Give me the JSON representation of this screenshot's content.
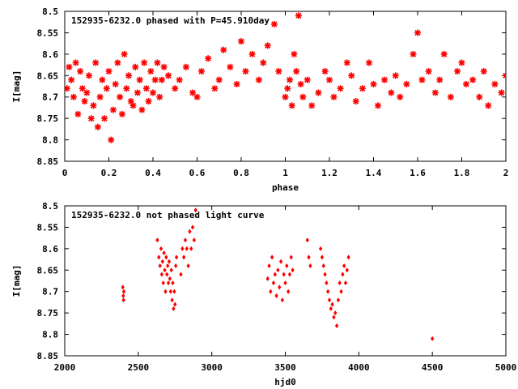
{
  "chart_data": [
    {
      "type": "scatter",
      "title": "152935-6232.0 phased with P=45.910day",
      "xlabel": "phase",
      "ylabel": "I[mag]",
      "xlim": [
        0,
        2
      ],
      "ylim": [
        8.85,
        8.5
      ],
      "y_inverted": true,
      "xticks": [
        "0",
        "0.2",
        "0.4",
        "0.6",
        "0.8",
        "1",
        "1.2",
        "1.4",
        "1.6",
        "1.8",
        "2"
      ],
      "yticks": [
        "8.5",
        "8.55",
        "8.6",
        "8.65",
        "8.7",
        "8.75",
        "8.8",
        "8.85"
      ],
      "grid": false,
      "marker": "star",
      "color": "#ff0000",
      "series": [
        {
          "x": [
            0.01,
            0.02,
            0.03,
            0.04,
            0.05,
            0.06,
            0.07,
            0.08,
            0.09,
            0.1,
            0.11,
            0.12,
            0.13,
            0.14,
            0.15,
            0.16,
            0.17,
            0.18,
            0.19,
            0.2,
            0.21,
            0.22,
            0.23,
            0.24,
            0.25,
            0.26,
            0.27,
            0.28,
            0.29,
            0.3,
            0.31,
            0.32,
            0.33,
            0.34,
            0.35,
            0.36,
            0.37,
            0.38,
            0.39,
            0.4,
            0.41,
            0.42,
            0.43,
            0.44,
            0.45,
            0.47,
            0.5,
            0.52,
            0.55,
            0.58,
            0.6,
            0.62,
            0.65,
            0.68,
            0.7,
            0.72,
            0.75,
            0.78,
            0.8,
            0.82,
            0.85,
            0.88,
            0.9,
            0.92,
            0.95,
            0.97,
            1.0,
            1.01,
            1.02,
            1.03,
            1.04,
            1.05,
            1.06,
            1.07,
            1.08,
            1.1,
            1.12,
            1.15,
            1.18,
            1.2,
            1.22,
            1.25,
            1.28,
            1.3,
            1.32,
            1.35,
            1.38,
            1.4,
            1.42,
            1.45,
            1.48,
            1.5,
            1.52,
            1.55,
            1.58,
            1.6,
            1.62,
            1.65,
            1.68,
            1.7,
            1.72,
            1.75,
            1.78,
            1.8,
            1.82,
            1.85,
            1.88,
            1.9,
            1.92,
            1.95,
            1.98,
            2.0
          ],
          "y": [
            8.68,
            8.63,
            8.66,
            8.7,
            8.62,
            8.74,
            8.64,
            8.68,
            8.71,
            8.69,
            8.65,
            8.75,
            8.72,
            8.62,
            8.77,
            8.7,
            8.66,
            8.75,
            8.68,
            8.64,
            8.8,
            8.73,
            8.67,
            8.62,
            8.7,
            8.74,
            8.6,
            8.68,
            8.65,
            8.71,
            8.72,
            8.63,
            8.69,
            8.66,
            8.73,
            8.62,
            8.68,
            8.71,
            8.64,
            8.69,
            8.66,
            8.62,
            8.7,
            8.66,
            8.63,
            8.65,
            8.68,
            8.66,
            8.63,
            8.69,
            8.7,
            8.64,
            8.61,
            8.68,
            8.66,
            8.59,
            8.63,
            8.67,
            8.57,
            8.64,
            8.6,
            8.66,
            8.62,
            8.58,
            8.53,
            8.64,
            8.7,
            8.68,
            8.66,
            8.72,
            8.6,
            8.64,
            8.51,
            8.67,
            8.7,
            8.66,
            8.72,
            8.69,
            8.64,
            8.66,
            8.7,
            8.68,
            8.62,
            8.65,
            8.71,
            8.68,
            8.62,
            8.67,
            8.72,
            8.66,
            8.69,
            8.65,
            8.7,
            8.67,
            8.6,
            8.55,
            8.66,
            8.64,
            8.69,
            8.66,
            8.6,
            8.7,
            8.64,
            8.62,
            8.67,
            8.66,
            8.7,
            8.64,
            8.72,
            8.67,
            8.69,
            8.65
          ]
        }
      ]
    },
    {
      "type": "scatter",
      "title": "152935-6232.0 not phased light curve",
      "xlabel": "hjd0",
      "ylabel": "I[mag]",
      "xlim": [
        2000,
        5000
      ],
      "ylim": [
        8.85,
        8.5
      ],
      "y_inverted": true,
      "xticks": [
        "2000",
        "2500",
        "3000",
        "3500",
        "4000",
        "4500",
        "5000"
      ],
      "yticks": [
        "8.5",
        "8.55",
        "8.6",
        "8.65",
        "8.7",
        "8.75",
        "8.8",
        "8.85"
      ],
      "grid": false,
      "marker": "diamond",
      "color": "#ff0000",
      "series": [
        {
          "x": [
            2395,
            2398,
            2400,
            2402,
            2630,
            2640,
            2648,
            2655,
            2660,
            2665,
            2670,
            2675,
            2680,
            2685,
            2690,
            2695,
            2700,
            2705,
            2710,
            2715,
            2720,
            2725,
            2730,
            2735,
            2740,
            2745,
            2750,
            2755,
            2760,
            2790,
            2800,
            2810,
            2820,
            2830,
            2840,
            2850,
            2860,
            2870,
            2880,
            2890,
            3380,
            3390,
            3400,
            3410,
            3420,
            3430,
            3440,
            3450,
            3460,
            3470,
            3480,
            3490,
            3500,
            3510,
            3520,
            3530,
            3540,
            3550,
            3650,
            3660,
            3670,
            3740,
            3750,
            3760,
            3770,
            3780,
            3790,
            3800,
            3810,
            3820,
            3830,
            3840,
            3850,
            3860,
            3870,
            3880,
            3890,
            3900,
            3910,
            3920,
            3930,
            4500
          ],
          "y": [
            8.69,
            8.71,
            8.72,
            8.7,
            8.58,
            8.62,
            8.64,
            8.6,
            8.66,
            8.63,
            8.68,
            8.61,
            8.65,
            8.7,
            8.62,
            8.66,
            8.64,
            8.68,
            8.63,
            8.67,
            8.7,
            8.65,
            8.72,
            8.68,
            8.74,
            8.7,
            8.73,
            8.64,
            8.62,
            8.66,
            8.6,
            8.62,
            8.58,
            8.6,
            8.64,
            8.56,
            8.6,
            8.55,
            8.58,
            8.51,
            8.67,
            8.64,
            8.7,
            8.62,
            8.68,
            8.66,
            8.71,
            8.65,
            8.69,
            8.63,
            8.72,
            8.66,
            8.68,
            8.64,
            8.7,
            8.66,
            8.62,
            8.65,
            8.58,
            8.62,
            8.64,
            8.6,
            8.62,
            8.64,
            8.66,
            8.68,
            8.7,
            8.72,
            8.74,
            8.73,
            8.76,
            8.75,
            8.78,
            8.72,
            8.68,
            8.7,
            8.66,
            8.64,
            8.68,
            8.65,
            8.62,
            8.81
          ]
        }
      ]
    }
  ]
}
